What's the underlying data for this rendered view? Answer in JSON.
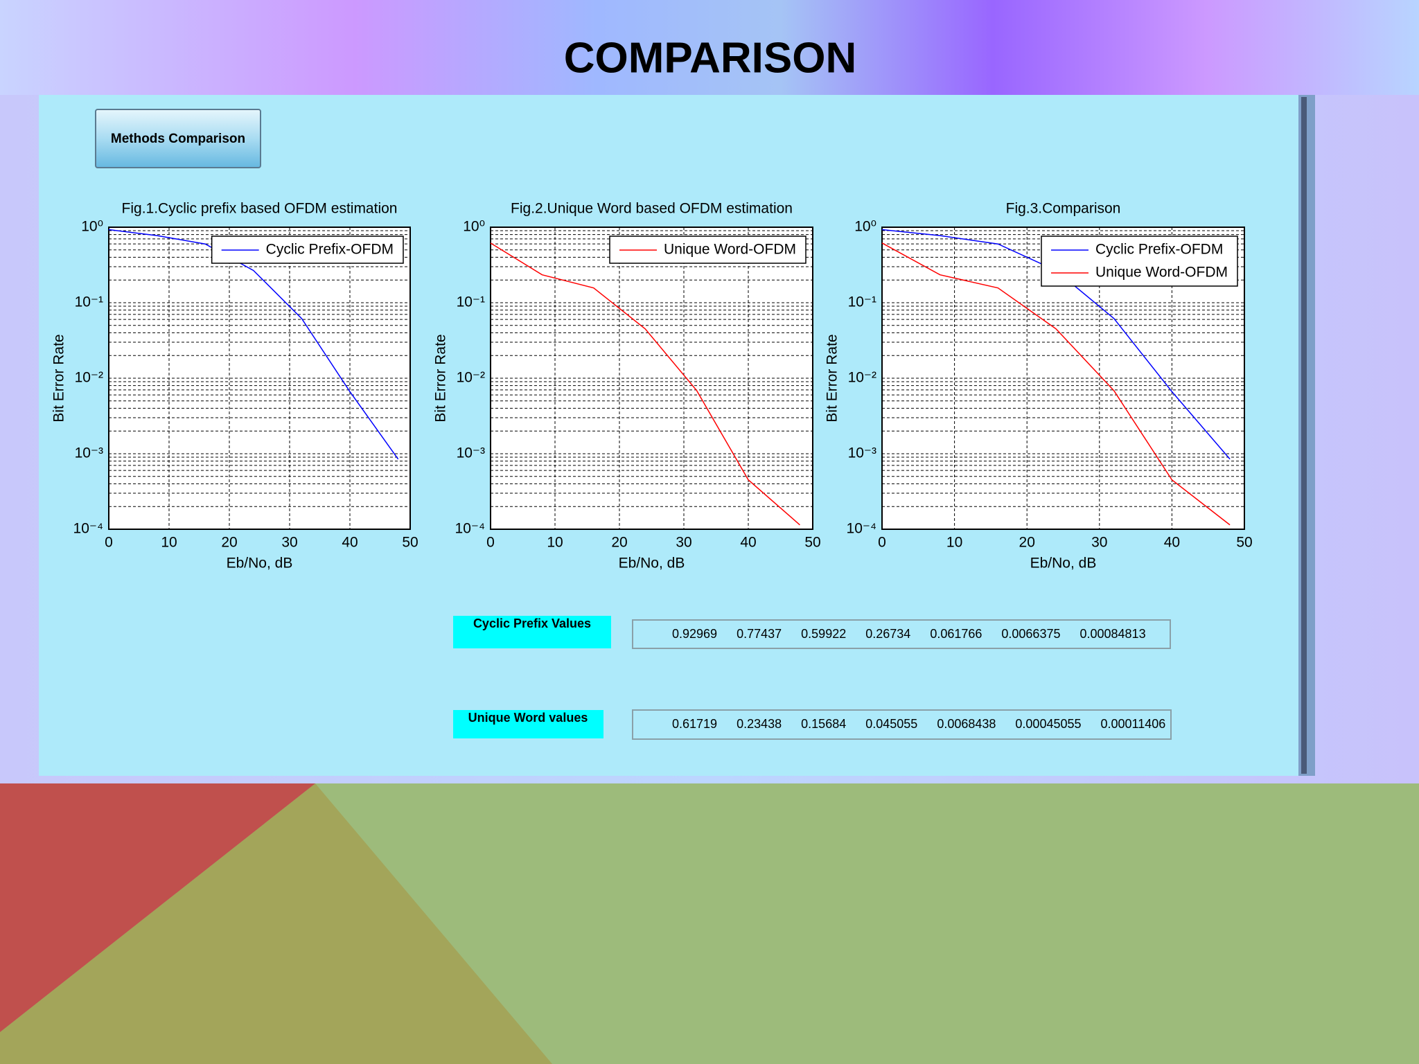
{
  "slide_title": "COMPARISON",
  "button": "Methods Comparison",
  "value_panels": [
    {
      "label": "Cyclic Prefix Values"
    },
    {
      "label": "Unique Word values"
    }
  ],
  "chart_data": [
    {
      "type": "line",
      "title": "Fig.1.Cyclic prefix based OFDM estimation",
      "x_label": "Eb/No, dB",
      "y_label": "Bit Error Rate",
      "x": [
        0,
        8,
        16,
        24,
        32,
        40,
        48
      ],
      "series": [
        {
          "name": "Cyclic Prefix-OFDM",
          "color": "#0000ff",
          "values": [
            0.92969,
            0.77437,
            0.59922,
            0.26734,
            0.061766,
            0.0066375,
            0.00084813
          ]
        }
      ],
      "xlim": [
        0,
        50
      ],
      "xticks": [
        0,
        10,
        20,
        30,
        40,
        50
      ],
      "ylim": [
        0.0001,
        1
      ],
      "yticks": [
        {
          "value": 1,
          "label": "10⁰"
        },
        {
          "value": 0.1,
          "label": "10⁻¹"
        },
        {
          "value": 0.01,
          "label": "10⁻²"
        },
        {
          "value": 0.001,
          "label": "10⁻³"
        },
        {
          "value": 0.0001,
          "label": "10⁻⁴"
        }
      ],
      "log_y": true,
      "grid": true,
      "legend": "upper right"
    },
    {
      "type": "line",
      "title": "Fig.2.Unique Word based OFDM estimation",
      "x_label": "Eb/No, dB",
      "y_label": "Bit Error Rate",
      "x": [
        0,
        8,
        16,
        24,
        32,
        40,
        48
      ],
      "series": [
        {
          "name": "Unique Word-OFDM",
          "color": "#ff0000",
          "values": [
            0.61719,
            0.23438,
            0.15684,
            0.045055,
            0.0068438,
            0.00045055,
            0.00011406
          ]
        }
      ],
      "xlim": [
        0,
        50
      ],
      "xticks": [
        0,
        10,
        20,
        30,
        40,
        50
      ],
      "ylim": [
        0.0001,
        1
      ],
      "yticks": [
        {
          "value": 1,
          "label": "10⁰"
        },
        {
          "value": 0.1,
          "label": "10⁻¹"
        },
        {
          "value": 0.01,
          "label": "10⁻²"
        },
        {
          "value": 0.001,
          "label": "10⁻³"
        },
        {
          "value": 0.0001,
          "label": "10⁻⁴"
        }
      ],
      "log_y": true,
      "grid": true,
      "legend": "upper right"
    },
    {
      "type": "line",
      "title": "Fig.3.Comparison",
      "x_label": "Eb/No, dB",
      "y_label": "Bit Error Rate",
      "x": [
        0,
        8,
        16,
        24,
        32,
        40,
        48
      ],
      "series": [
        {
          "name": "Cyclic Prefix-OFDM",
          "color": "#0000ff",
          "values": [
            0.92969,
            0.77437,
            0.59922,
            0.26734,
            0.061766,
            0.0066375,
            0.00084813
          ]
        },
        {
          "name": "Unique Word-OFDM",
          "color": "#ff0000",
          "values": [
            0.61719,
            0.23438,
            0.15684,
            0.045055,
            0.0068438,
            0.00045055,
            0.00011406
          ]
        }
      ],
      "xlim": [
        0,
        50
      ],
      "xticks": [
        0,
        10,
        20,
        30,
        40,
        50
      ],
      "ylim": [
        0.0001,
        1
      ],
      "yticks": [
        {
          "value": 1,
          "label": "10⁰"
        },
        {
          "value": 0.1,
          "label": "10⁻¹"
        },
        {
          "value": 0.01,
          "label": "10⁻²"
        },
        {
          "value": 0.001,
          "label": "10⁻³"
        },
        {
          "value": 0.0001,
          "label": "10⁻⁴"
        }
      ],
      "log_y": true,
      "grid": true,
      "legend": "upper right"
    }
  ]
}
